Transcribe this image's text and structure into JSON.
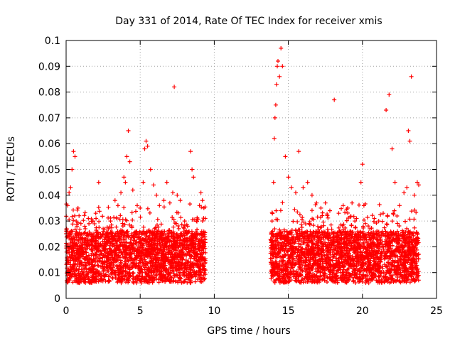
{
  "chart_data": {
    "type": "scatter",
    "title": "Day 331 of 2014, Rate Of TEC Index for receiver xmis",
    "xlabel": "GPS time / hours",
    "ylabel": "ROTI / TECUs",
    "xlim": [
      0,
      25
    ],
    "ylim": [
      0,
      0.1
    ],
    "x_ticks": [
      0,
      5,
      10,
      15,
      20,
      25
    ],
    "x_tick_labels": [
      "0",
      "5",
      "10",
      "15",
      "20",
      "25"
    ],
    "y_ticks": [
      0,
      0.01,
      0.02,
      0.03,
      0.04,
      0.05,
      0.06,
      0.07,
      0.08,
      0.09,
      0.1
    ],
    "y_tick_labels": [
      "0",
      "0.01",
      "0.02",
      "0.03",
      "0.04",
      "0.05",
      "0.06",
      "0.07",
      "0.08",
      "0.09",
      "0.1"
    ],
    "grid": true,
    "marker": "+",
    "marker_color": "#ff0000",
    "series": [
      {
        "name": "ROTI",
        "points": [
          [
            0.1,
            0.036
          ],
          [
            0.2,
            0.041
          ],
          [
            0.3,
            0.043
          ],
          [
            0.4,
            0.05
          ],
          [
            0.5,
            0.057
          ],
          [
            0.6,
            0.055
          ],
          [
            0.8,
            0.035
          ],
          [
            1.0,
            0.029
          ],
          [
            1.3,
            0.027
          ],
          [
            1.5,
            0.031
          ],
          [
            1.8,
            0.03
          ],
          [
            2.0,
            0.033
          ],
          [
            2.2,
            0.045
          ],
          [
            2.5,
            0.027
          ],
          [
            2.8,
            0.025
          ],
          [
            3.0,
            0.03
          ],
          [
            3.3,
            0.038
          ],
          [
            3.5,
            0.036
          ],
          [
            3.7,
            0.041
          ],
          [
            3.9,
            0.047
          ],
          [
            4.0,
            0.045
          ],
          [
            4.1,
            0.055
          ],
          [
            4.2,
            0.065
          ],
          [
            4.3,
            0.053
          ],
          [
            4.5,
            0.042
          ],
          [
            4.8,
            0.036
          ],
          [
            5.0,
            0.035
          ],
          [
            5.2,
            0.045
          ],
          [
            5.3,
            0.058
          ],
          [
            5.4,
            0.061
          ],
          [
            5.5,
            0.059
          ],
          [
            5.7,
            0.05
          ],
          [
            5.9,
            0.044
          ],
          [
            6.1,
            0.04
          ],
          [
            6.3,
            0.036
          ],
          [
            6.6,
            0.038
          ],
          [
            6.8,
            0.045
          ],
          [
            7.0,
            0.037
          ],
          [
            7.2,
            0.041
          ],
          [
            7.3,
            0.082
          ],
          [
            7.5,
            0.04
          ],
          [
            7.7,
            0.038
          ],
          [
            8.0,
            0.03
          ],
          [
            8.2,
            0.028
          ],
          [
            8.4,
            0.057
          ],
          [
            8.5,
            0.05
          ],
          [
            8.6,
            0.047
          ],
          [
            8.8,
            0.03
          ],
          [
            9.0,
            0.036
          ],
          [
            9.1,
            0.041
          ],
          [
            9.2,
            0.038
          ],
          [
            9.3,
            0.035
          ],
          [
            13.9,
            0.03
          ],
          [
            14.0,
            0.045
          ],
          [
            14.05,
            0.062
          ],
          [
            14.1,
            0.07
          ],
          [
            14.15,
            0.075
          ],
          [
            14.2,
            0.083
          ],
          [
            14.25,
            0.09
          ],
          [
            14.3,
            0.092
          ],
          [
            14.4,
            0.086
          ],
          [
            14.5,
            0.097
          ],
          [
            14.6,
            0.09
          ],
          [
            14.8,
            0.055
          ],
          [
            15.0,
            0.047
          ],
          [
            15.2,
            0.043
          ],
          [
            15.5,
            0.041
          ],
          [
            15.7,
            0.057
          ],
          [
            16.0,
            0.043
          ],
          [
            16.3,
            0.045
          ],
          [
            16.6,
            0.04
          ],
          [
            16.9,
            0.037
          ],
          [
            17.2,
            0.035
          ],
          [
            17.5,
            0.037
          ],
          [
            17.8,
            0.034
          ],
          [
            18.1,
            0.077
          ],
          [
            18.4,
            0.033
          ],
          [
            18.7,
            0.036
          ],
          [
            19.0,
            0.035
          ],
          [
            19.3,
            0.037
          ],
          [
            19.6,
            0.031
          ],
          [
            19.9,
            0.045
          ],
          [
            20.0,
            0.052
          ],
          [
            20.2,
            0.029
          ],
          [
            20.5,
            0.027
          ],
          [
            20.8,
            0.031
          ],
          [
            21.1,
            0.03
          ],
          [
            21.4,
            0.033
          ],
          [
            21.6,
            0.073
          ],
          [
            21.8,
            0.079
          ],
          [
            22.0,
            0.058
          ],
          [
            22.2,
            0.045
          ],
          [
            22.5,
            0.036
          ],
          [
            22.8,
            0.041
          ],
          [
            23.0,
            0.043
          ],
          [
            23.1,
            0.065
          ],
          [
            23.2,
            0.061
          ],
          [
            23.3,
            0.086
          ],
          [
            23.5,
            0.04
          ],
          [
            23.7,
            0.045
          ],
          [
            23.8,
            0.044
          ]
        ]
      }
    ],
    "coverage_intervals_hours": [
      [
        0.0,
        9.4
      ],
      [
        13.8,
        23.8
      ]
    ],
    "baseline_band": [
      0.006,
      0.026
    ]
  }
}
